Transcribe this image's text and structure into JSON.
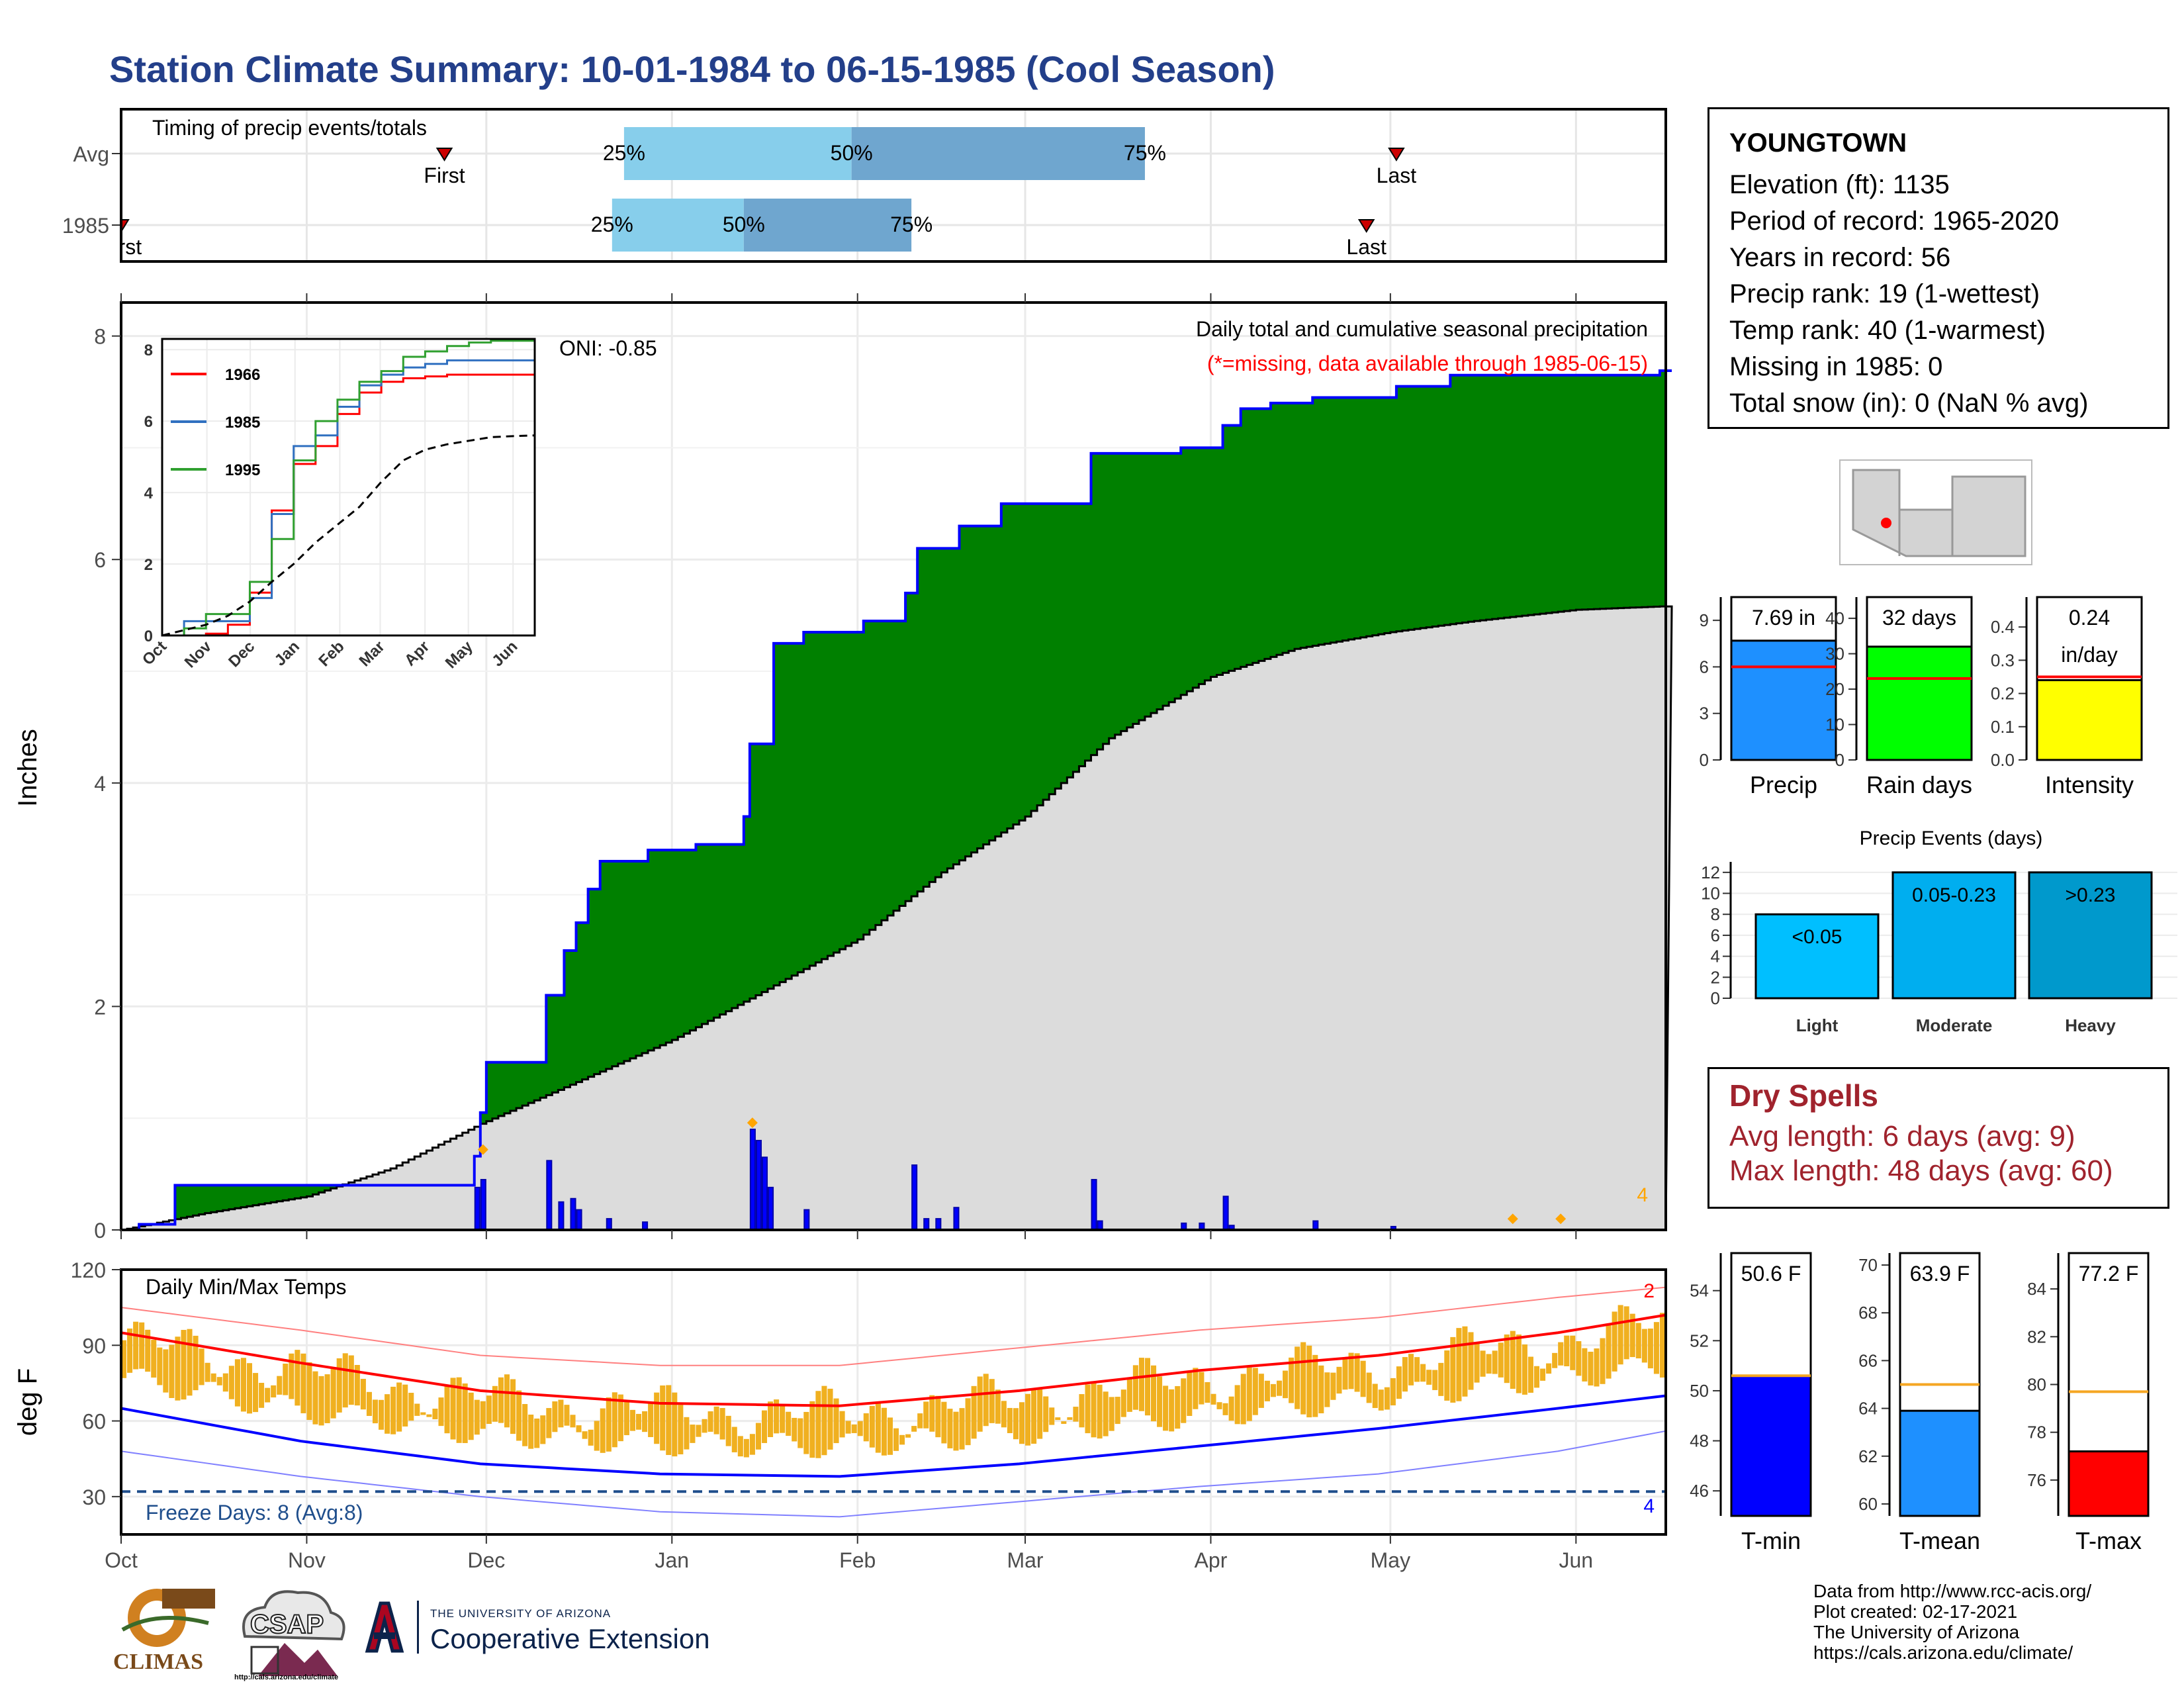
{
  "page": {
    "title": "Station Climate Summary: 10-01-1984 to 06-15-1985 (Cool Season)",
    "credits": [
      "Data from http://www.rcc-acis.org/",
      "Plot created: 02-17-2021",
      "The University of Arizona",
      "https://cals.arizona.edu/climate/"
    ],
    "logos": {
      "climas": "CLIMAS",
      "csap": "CSAP",
      "csap_url": "http://cals.arizona.edu/climate",
      "ua_top": "THE UNIVERSITY OF ARIZONA",
      "ua_main": "Cooperative Extension"
    }
  },
  "station": {
    "name": "YOUNGTOWN",
    "lines": [
      "Elevation (ft): 1135",
      "Period of record: 1965-2020",
      "Years in record: 56",
      "Precip rank: 19 (1-wettest)",
      "Temp rank: 40 (1-warmest)",
      "Missing in 1985: 0",
      "Total snow (in): 0 (NaN % avg)"
    ]
  },
  "dry_spells": {
    "title": "Dry Spells",
    "avg": "Avg length: 6 days (avg: 9)",
    "max": "Max length: 48 days (avg: 60)"
  },
  "colors": {
    "title": "#233f8a",
    "green": "#008000",
    "brown": "#8b5a00",
    "grey": "#dcdcdc",
    "blue": "#0000ff",
    "q_light": "#87ceeb",
    "q_dark": "#6fa6cf",
    "orange": "#f0b020",
    "red": "#ff0000",
    "dry": "#a0232d"
  },
  "chart_data": [
    {
      "id": "timing",
      "type": "table",
      "title": "Timing of precip events/totals",
      "rows": [
        {
          "label": "Avg",
          "first": "Nov 24",
          "q25": "Dec 24",
          "q50": "Jan 31",
          "q75": "Mar 21",
          "last": "May 2",
          "first_label": "First",
          "last_label": "Last"
        },
        {
          "label": "1985",
          "first": "Oct 1",
          "q25": "Dec 22",
          "q50": "Jan 13",
          "q75": "Feb 10",
          "last": "Apr 27",
          "first_label": "First",
          "last_label": "Last"
        }
      ],
      "pct_labels": [
        "25%",
        "50%",
        "75%"
      ]
    },
    {
      "id": "main_precip",
      "type": "area",
      "title": "Daily total and cumulative seasonal precipitation",
      "subtitle": "(*=missing, data available through 1985-06-15)",
      "annotation": "ONI: -0.85",
      "ylabel": "Inches",
      "ylim": [
        0,
        8.3
      ],
      "yticks": [
        0,
        2,
        4,
        6,
        8
      ],
      "xticks": [
        "Oct",
        "Nov",
        "Dec",
        "Jan",
        "Feb",
        "Mar",
        "Apr",
        "May",
        "Jun"
      ],
      "corner_count": "4",
      "cumulative_1985": [
        [
          "10-01",
          0
        ],
        [
          "10-04",
          0.05
        ],
        [
          "10-10",
          0.4
        ],
        [
          "11-23",
          0.4
        ],
        [
          "11-29",
          0.66
        ],
        [
          "11-30",
          1.05
        ],
        [
          "12-01",
          1.5
        ],
        [
          "12-10",
          1.5
        ],
        [
          "12-11",
          2.1
        ],
        [
          "12-14",
          2.5
        ],
        [
          "12-16",
          2.75
        ],
        [
          "12-18",
          3.05
        ],
        [
          "12-20",
          3.3
        ],
        [
          "12-28",
          3.4
        ],
        [
          "01-05",
          3.45
        ],
        [
          "01-13",
          3.7
        ],
        [
          "01-14",
          4.35
        ],
        [
          "01-18",
          5.25
        ],
        [
          "01-23",
          5.35
        ],
        [
          "02-02",
          5.45
        ],
        [
          "02-09",
          5.7
        ],
        [
          "02-11",
          6.1
        ],
        [
          "02-18",
          6.3
        ],
        [
          "02-25",
          6.5
        ],
        [
          "03-12",
          6.95
        ],
        [
          "03-27",
          7.0
        ],
        [
          "04-03",
          7.2
        ],
        [
          "04-06",
          7.35
        ],
        [
          "04-11",
          7.4
        ],
        [
          "04-18",
          7.45
        ],
        [
          "05-02",
          7.55
        ],
        [
          "05-11",
          7.65
        ],
        [
          "06-15",
          7.69
        ]
      ],
      "cumulative_avg": [
        [
          "10-01",
          0
        ],
        [
          "10-15",
          0.15
        ],
        [
          "11-01",
          0.3
        ],
        [
          "11-15",
          0.55
        ],
        [
          "11-30",
          0.95
        ],
        [
          "12-15",
          1.3
        ],
        [
          "01-01",
          1.7
        ],
        [
          "01-15",
          2.1
        ],
        [
          "02-01",
          2.6
        ],
        [
          "02-15",
          3.2
        ],
        [
          "03-01",
          3.7
        ],
        [
          "03-15",
          4.4
        ],
        [
          "04-01",
          4.95
        ],
        [
          "04-15",
          5.2
        ],
        [
          "05-01",
          5.35
        ],
        [
          "05-15",
          5.45
        ],
        [
          "06-01",
          5.55
        ],
        [
          "06-15",
          5.58
        ]
      ],
      "daily_bars": [
        [
          "11-29",
          0.38
        ],
        [
          "11-30",
          0.45
        ],
        [
          "12-11",
          0.62
        ],
        [
          "12-13",
          0.25
        ],
        [
          "12-15",
          0.28
        ],
        [
          "12-16",
          0.18
        ],
        [
          "12-21",
          0.1
        ],
        [
          "12-27",
          0.07
        ],
        [
          "01-14",
          0.9
        ],
        [
          "01-15",
          0.8
        ],
        [
          "01-16",
          0.65
        ],
        [
          "01-17",
          0.38
        ],
        [
          "01-23",
          0.18
        ],
        [
          "02-10",
          0.58
        ],
        [
          "02-12",
          0.1
        ],
        [
          "02-14",
          0.1
        ],
        [
          "02-17",
          0.2
        ],
        [
          "03-12",
          0.45
        ],
        [
          "03-13",
          0.08
        ],
        [
          "03-27",
          0.06
        ],
        [
          "03-30",
          0.06
        ],
        [
          "04-03",
          0.3
        ],
        [
          "04-04",
          0.04
        ],
        [
          "04-18",
          0.08
        ],
        [
          "05-01",
          0.03
        ]
      ],
      "markers": [
        [
          "11-30",
          0.66
        ],
        [
          "01-14",
          0.9
        ],
        [
          "05-21",
          0.04
        ],
        [
          "05-29",
          0.04
        ]
      ]
    },
    {
      "id": "inset",
      "type": "line",
      "xticks": [
        "Oct",
        "Nov",
        "Dec",
        "Jan",
        "Feb",
        "Mar",
        "Apr",
        "May",
        "Jun"
      ],
      "yticks": [
        0,
        2,
        4,
        6,
        8
      ],
      "ylim": [
        0,
        8.3
      ],
      "series": [
        {
          "name": "1966",
          "color": "#ff0000",
          "values": [
            0,
            0,
            0.05,
            0.3,
            1.2,
            3.5,
            4.8,
            5.3,
            6.2,
            6.8,
            7.1,
            7.2,
            7.25,
            7.3,
            7.3,
            7.3,
            7.3,
            7.3
          ]
        },
        {
          "name": "1985",
          "color": "#3070c0",
          "values": [
            0,
            0.4,
            0.4,
            0.4,
            1.05,
            3.4,
            5.3,
            5.6,
            6.4,
            7.0,
            7.3,
            7.5,
            7.6,
            7.7,
            7.7,
            7.7,
            7.7,
            7.7
          ]
        },
        {
          "name": "1995",
          "color": "#30a030",
          "values": [
            0,
            0.2,
            0.6,
            0.6,
            1.5,
            2.7,
            4.9,
            6.0,
            6.6,
            7.1,
            7.4,
            7.8,
            7.95,
            8.1,
            8.2,
            8.25,
            8.25,
            8.25
          ]
        },
        {
          "name": "",
          "color": "#000000",
          "dashed": true,
          "values": [
            0,
            0.15,
            0.3,
            0.55,
            0.95,
            1.5,
            2.0,
            2.6,
            3.1,
            3.6,
            4.3,
            4.9,
            5.2,
            5.35,
            5.45,
            5.55,
            5.58,
            5.6
          ]
        }
      ]
    },
    {
      "id": "temps",
      "type": "line",
      "title": "Daily Min/Max Temps",
      "ylabel": "deg F",
      "ylim": [
        15,
        120
      ],
      "yticks": [
        30,
        60,
        90,
        120
      ],
      "xticks": [
        "Oct",
        "Nov",
        "Dec",
        "Jan",
        "Feb",
        "Mar",
        "Apr",
        "May",
        "Jun"
      ],
      "freeze_text": "Freeze Days: 8 (Avg:8)",
      "freeze_line": 32,
      "corner_low": "4",
      "corner_high": "2",
      "avg_max": [
        [
          0,
          95
        ],
        [
          30,
          83
        ],
        [
          60,
          72
        ],
        [
          90,
          67
        ],
        [
          120,
          66
        ],
        [
          150,
          72
        ],
        [
          180,
          80
        ],
        [
          210,
          86
        ],
        [
          240,
          95
        ],
        [
          258,
          102
        ]
      ],
      "avg_min": [
        [
          0,
          65
        ],
        [
          30,
          52
        ],
        [
          60,
          43
        ],
        [
          90,
          39
        ],
        [
          120,
          38
        ],
        [
          150,
          43
        ],
        [
          180,
          50
        ],
        [
          210,
          57
        ],
        [
          240,
          65
        ],
        [
          258,
          70
        ]
      ],
      "rec_max": [
        [
          0,
          105
        ],
        [
          30,
          96
        ],
        [
          60,
          86
        ],
        [
          90,
          82
        ],
        [
          120,
          82
        ],
        [
          150,
          89
        ],
        [
          180,
          96
        ],
        [
          210,
          101
        ],
        [
          240,
          109
        ],
        [
          258,
          113
        ]
      ],
      "rec_min": [
        [
          0,
          48
        ],
        [
          30,
          38
        ],
        [
          60,
          30
        ],
        [
          90,
          24
        ],
        [
          120,
          22
        ],
        [
          150,
          28
        ],
        [
          180,
          34
        ],
        [
          210,
          39
        ],
        [
          240,
          48
        ],
        [
          258,
          56
        ]
      ]
    },
    {
      "id": "precip_stats",
      "type": "bar",
      "categories": [
        "Precip",
        "Rain days",
        "Intensity"
      ],
      "values": [
        7.69,
        32,
        0.24
      ],
      "avg": [
        6,
        23,
        0.25
      ],
      "labels": [
        "7.69 in",
        "32 days",
        "0.24"
      ],
      "intensity_unit": "in/day",
      "ylims": [
        [
          0,
          10.5
        ],
        [
          0,
          46
        ],
        [
          0,
          0.49
        ]
      ],
      "yticks": [
        [
          0,
          3,
          6,
          9
        ],
        [
          0,
          10,
          20,
          30,
          40
        ],
        [
          0.0,
          0.1,
          0.2,
          0.3,
          0.4
        ]
      ],
      "colors": [
        "#1e90ff",
        "#00ff00",
        "#ffff00"
      ]
    },
    {
      "id": "events",
      "type": "bar",
      "title": "Precip Events (days)",
      "categories": [
        "Light",
        "Moderate",
        "Heavy"
      ],
      "bar_labels": [
        "<0.05",
        "0.05-0.23",
        ">0.23"
      ],
      "values": [
        8,
        12,
        12
      ],
      "ylim": [
        0,
        13
      ],
      "yticks": [
        0,
        2,
        4,
        6,
        8,
        10,
        12
      ],
      "colors": [
        "#00bfff",
        "#00aeef",
        "#0099cc"
      ]
    },
    {
      "id": "temp_stats",
      "type": "bar",
      "categories": [
        "T-min",
        "T-mean",
        "T-max"
      ],
      "values": [
        50.6,
        63.9,
        77.2
      ],
      "avg": [
        50.6,
        65.0,
        79.7
      ],
      "labels": [
        "50.6 F",
        "63.9 F",
        "77.2 F"
      ],
      "ylims": [
        [
          45,
          55.5
        ],
        [
          59.5,
          70.5
        ],
        [
          74.5,
          85.5
        ]
      ],
      "yticks": [
        [
          46,
          48,
          50,
          52,
          54
        ],
        [
          60,
          62,
          64,
          66,
          68,
          70
        ],
        [
          76,
          78,
          80,
          82,
          84
        ]
      ],
      "colors": [
        "#0000ff",
        "#1e90ff",
        "#ff0000"
      ]
    }
  ]
}
